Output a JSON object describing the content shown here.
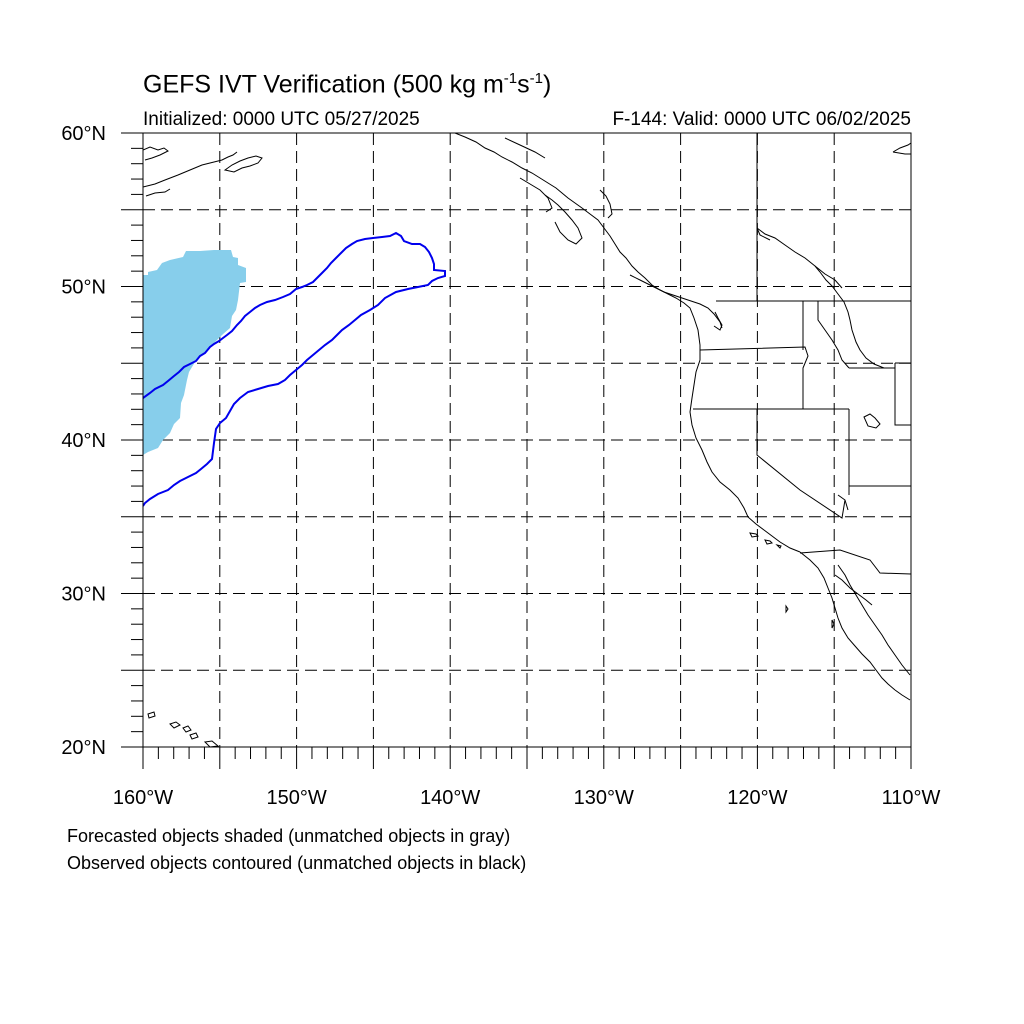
{
  "title": {
    "main": "GEFS IVT Verification (500 kg m",
    "exp1": "-1",
    "mid": "s",
    "exp2": "-1",
    "close": ")"
  },
  "subtitle": {
    "initialized": "Initialized: 0000 UTC 05/27/2025",
    "valid": "F-144: Valid: 0000 UTC 06/02/2025"
  },
  "map": {
    "lat_range": [
      20,
      60
    ],
    "lon_range": [
      -160,
      -110
    ],
    "lat_labels": [
      "20°N",
      "30°N",
      "40°N",
      "50°N",
      "60°N"
    ],
    "lon_labels": [
      "160°W",
      "150°W",
      "140°W",
      "130°W",
      "120°W",
      "110°W"
    ],
    "gridlines": "dashed",
    "colors": {
      "forecast_shade": "#87ceeb",
      "observed_contour": "#0000ee",
      "coastline": "#000000"
    }
  },
  "captions": {
    "line1": "Forecasted objects shaded (unmatched objects in gray)",
    "line2": "Observed objects contoured (unmatched objects in black)"
  }
}
